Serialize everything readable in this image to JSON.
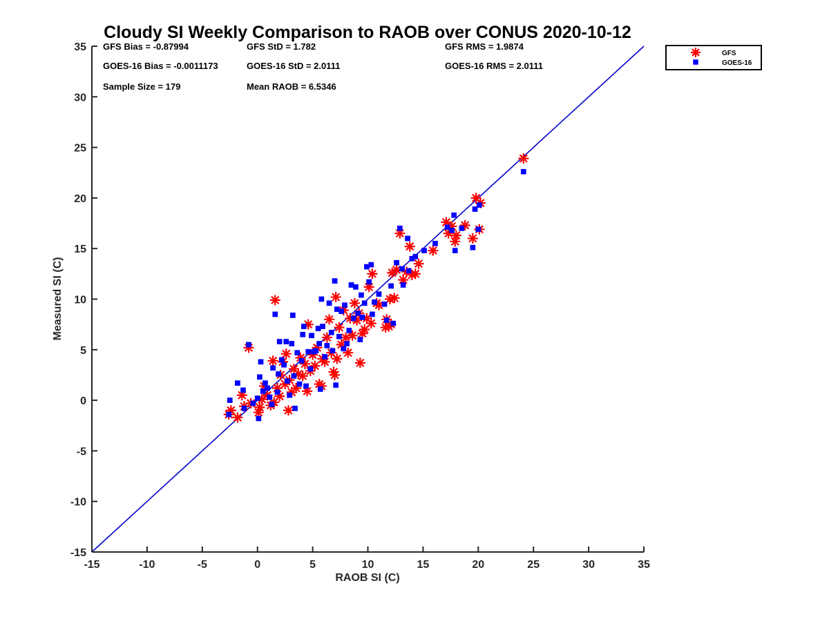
{
  "chart_data": {
    "type": "scatter",
    "title": "Cloudy SI Weekly Comparison to RAOB over CONUS 2020-10-12",
    "xlabel": "RAOB SI (C)",
    "ylabel": "Measured SI (C)",
    "xlim": [
      -15,
      35
    ],
    "ylim": [
      -15,
      35
    ],
    "xticks": [
      -15,
      -10,
      -5,
      0,
      5,
      10,
      15,
      20,
      25,
      30,
      35
    ],
    "yticks": [
      -15,
      -10,
      -5,
      0,
      5,
      10,
      15,
      20,
      25,
      30,
      35
    ],
    "grid": false,
    "legend_position": "outside top-right",
    "reference_line": {
      "from": [
        -15,
        -15
      ],
      "to": [
        35,
        35
      ],
      "color": "#0000cc"
    },
    "stats": [
      {
        "label": "GFS Bias = -0.87994"
      },
      {
        "label": "GFS StD = 1.782"
      },
      {
        "label": "GFS RMS = 1.9874"
      },
      {
        "label": "GOES-16 Bias = -0.0011173"
      },
      {
        "label": "GOES-16 StD = 2.0111"
      },
      {
        "label": "GOES-16 RMS = 2.0111"
      },
      {
        "label": "Sample Size = 179"
      },
      {
        "label": "Mean RAOB = 6.5346"
      }
    ],
    "series": [
      {
        "name": "GFS",
        "marker": "asterisk",
        "color": "#ff0000",
        "points": [
          [
            -2.6,
            -1.4
          ],
          [
            -2.4,
            -1.0
          ],
          [
            -1.8,
            -1.7
          ],
          [
            -1.4,
            0.5
          ],
          [
            -1.2,
            -0.6
          ],
          [
            -0.8,
            5.2
          ],
          [
            -0.6,
            -0.3
          ],
          [
            0.1,
            -1.2
          ],
          [
            0.2,
            -0.7
          ],
          [
            0.4,
            0.1
          ],
          [
            0.6,
            1.4
          ],
          [
            0.9,
            0.5
          ],
          [
            1.2,
            -0.5
          ],
          [
            1.4,
            3.9
          ],
          [
            1.5,
            -0.2
          ],
          [
            1.6,
            9.9
          ],
          [
            1.8,
            1.2
          ],
          [
            2.0,
            0.4
          ],
          [
            2.1,
            2.5
          ],
          [
            2.3,
            3.8
          ],
          [
            2.5,
            1.6
          ],
          [
            2.6,
            4.6
          ],
          [
            2.8,
            -1.0
          ],
          [
            2.9,
            2.0
          ],
          [
            3.1,
            0.8
          ],
          [
            3.3,
            3.1
          ],
          [
            3.5,
            1.2
          ],
          [
            3.7,
            2.6
          ],
          [
            3.9,
            4.2
          ],
          [
            4.1,
            2.4
          ],
          [
            4.3,
            3.6
          ],
          [
            4.5,
            0.9
          ],
          [
            4.6,
            7.5
          ],
          [
            4.8,
            2.9
          ],
          [
            5.0,
            4.5
          ],
          [
            5.2,
            3.4
          ],
          [
            5.4,
            5.2
          ],
          [
            5.6,
            1.6
          ],
          [
            5.8,
            1.4
          ],
          [
            5.9,
            4.1
          ],
          [
            6.1,
            3.8
          ],
          [
            6.3,
            6.2
          ],
          [
            6.5,
            8.0
          ],
          [
            6.7,
            4.7
          ],
          [
            6.9,
            2.8
          ],
          [
            7.0,
            2.5
          ],
          [
            7.1,
            10.2
          ],
          [
            7.2,
            4.1
          ],
          [
            7.4,
            7.2
          ],
          [
            7.6,
            5.5
          ],
          [
            7.8,
            8.9
          ],
          [
            8.0,
            6.2
          ],
          [
            8.2,
            4.7
          ],
          [
            8.4,
            8.1
          ],
          [
            8.6,
            6.4
          ],
          [
            8.8,
            9.6
          ],
          [
            9.0,
            7.9
          ],
          [
            9.2,
            8.6
          ],
          [
            9.3,
            3.7
          ],
          [
            9.5,
            6.6
          ],
          [
            9.7,
            7.0
          ],
          [
            9.9,
            8.1
          ],
          [
            10.1,
            11.2
          ],
          [
            10.3,
            7.6
          ],
          [
            10.4,
            12.5
          ],
          [
            10.8,
            9.6
          ],
          [
            11.0,
            9.4
          ],
          [
            11.6,
            7.2
          ],
          [
            11.7,
            8.0
          ],
          [
            11.9,
            7.3
          ],
          [
            12.0,
            10.0
          ],
          [
            12.1,
            7.5
          ],
          [
            12.2,
            12.6
          ],
          [
            12.4,
            10.1
          ],
          [
            12.6,
            12.9
          ],
          [
            12.9,
            16.5
          ],
          [
            13.2,
            11.9
          ],
          [
            13.5,
            12.7
          ],
          [
            13.8,
            15.2
          ],
          [
            14.0,
            12.4
          ],
          [
            14.3,
            12.5
          ],
          [
            14.6,
            13.5
          ],
          [
            15.9,
            14.8
          ],
          [
            17.1,
            17.6
          ],
          [
            17.3,
            16.5
          ],
          [
            17.6,
            17.2
          ],
          [
            17.9,
            15.7
          ],
          [
            18.0,
            16.3
          ],
          [
            18.8,
            17.3
          ],
          [
            19.5,
            16.0
          ],
          [
            19.8,
            20.0
          ],
          [
            20.1,
            16.9
          ],
          [
            20.2,
            19.5
          ],
          [
            24.1,
            23.9
          ]
        ]
      },
      {
        "name": "GOES-16",
        "marker": "square",
        "color": "#0000ff",
        "points": [
          [
            -2.6,
            -1.4
          ],
          [
            -2.5,
            0.0
          ],
          [
            -1.8,
            1.7
          ],
          [
            -1.3,
            1.0
          ],
          [
            -1.2,
            -0.8
          ],
          [
            -0.8,
            5.5
          ],
          [
            -0.4,
            -0.3
          ],
          [
            0.0,
            0.2
          ],
          [
            0.1,
            -1.8
          ],
          [
            0.2,
            2.3
          ],
          [
            0.3,
            3.8
          ],
          [
            0.5,
            0.9
          ],
          [
            0.7,
            1.7
          ],
          [
            0.9,
            1.2
          ],
          [
            1.1,
            0.3
          ],
          [
            1.3,
            -0.4
          ],
          [
            1.4,
            3.2
          ],
          [
            1.6,
            8.5
          ],
          [
            1.8,
            0.8
          ],
          [
            1.9,
            2.6
          ],
          [
            2.0,
            5.8
          ],
          [
            2.2,
            4.0
          ],
          [
            2.4,
            3.5
          ],
          [
            2.6,
            5.8
          ],
          [
            2.7,
            1.9
          ],
          [
            2.9,
            0.5
          ],
          [
            3.1,
            5.6
          ],
          [
            3.2,
            8.4
          ],
          [
            3.3,
            2.4
          ],
          [
            3.4,
            -0.8
          ],
          [
            3.6,
            4.7
          ],
          [
            3.8,
            1.6
          ],
          [
            4.0,
            3.9
          ],
          [
            4.1,
            6.5
          ],
          [
            4.2,
            7.3
          ],
          [
            4.4,
            1.4
          ],
          [
            4.6,
            4.8
          ],
          [
            4.8,
            3.1
          ],
          [
            4.9,
            6.4
          ],
          [
            5.1,
            4.8
          ],
          [
            5.3,
            4.9
          ],
          [
            5.5,
            7.1
          ],
          [
            5.6,
            5.6
          ],
          [
            5.7,
            1.1
          ],
          [
            5.8,
            10.0
          ],
          [
            5.9,
            7.3
          ],
          [
            6.1,
            4.3
          ],
          [
            6.3,
            5.4
          ],
          [
            6.5,
            9.6
          ],
          [
            6.7,
            6.7
          ],
          [
            6.8,
            4.9
          ],
          [
            7.0,
            11.8
          ],
          [
            7.1,
            1.5
          ],
          [
            7.2,
            9.0
          ],
          [
            7.4,
            6.3
          ],
          [
            7.6,
            8.8
          ],
          [
            7.8,
            5.1
          ],
          [
            7.9,
            9.4
          ],
          [
            8.1,
            5.6
          ],
          [
            8.3,
            6.9
          ],
          [
            8.5,
            11.4
          ],
          [
            8.7,
            8.1
          ],
          [
            8.9,
            11.2
          ],
          [
            9.1,
            8.6
          ],
          [
            9.3,
            6.0
          ],
          [
            9.4,
            10.4
          ],
          [
            9.5,
            8.2
          ],
          [
            9.7,
            9.6
          ],
          [
            9.9,
            13.2
          ],
          [
            10.1,
            11.7
          ],
          [
            10.3,
            13.4
          ],
          [
            10.4,
            8.5
          ],
          [
            10.6,
            9.7
          ],
          [
            11.0,
            10.5
          ],
          [
            11.5,
            9.5
          ],
          [
            11.7,
            7.9
          ],
          [
            12.1,
            11.3
          ],
          [
            12.3,
            7.6
          ],
          [
            12.6,
            13.6
          ],
          [
            12.9,
            17.0
          ],
          [
            13.1,
            13.0
          ],
          [
            13.2,
            11.4
          ],
          [
            13.6,
            16.0
          ],
          [
            13.7,
            12.8
          ],
          [
            14.0,
            14.0
          ],
          [
            14.3,
            14.2
          ],
          [
            15.1,
            14.8
          ],
          [
            16.1,
            15.5
          ],
          [
            17.2,
            17.1
          ],
          [
            17.6,
            16.8
          ],
          [
            17.8,
            18.3
          ],
          [
            17.9,
            14.8
          ],
          [
            18.5,
            17.0
          ],
          [
            19.5,
            15.1
          ],
          [
            19.7,
            18.9
          ],
          [
            20.0,
            16.9
          ],
          [
            20.1,
            19.3
          ],
          [
            24.1,
            22.6
          ]
        ]
      }
    ]
  }
}
